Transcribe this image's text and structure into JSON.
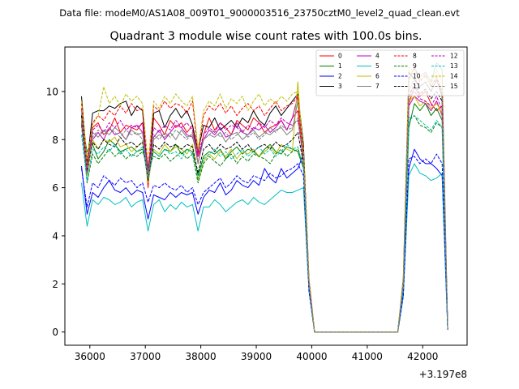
{
  "figure": {
    "suptitle": "Data file: modeM0/AS1A08_009T01_9000003516_23750cztM0_level2_quad_clean.evt",
    "offset_label": "+3.197e8"
  },
  "chart_data": {
    "type": "line",
    "title": "Quadrant 3 module wise count rates with 100.0s bins.",
    "xlabel": "",
    "ylabel": "",
    "x_offset": 319700000,
    "xlim": [
      35550,
      42800
    ],
    "ylim": [
      -0.55,
      11.85
    ],
    "x_ticks": [
      36000,
      37000,
      38000,
      39000,
      40000,
      41000,
      42000
    ],
    "x_tick_labels": [
      "36000",
      "37000",
      "38000",
      "39000",
      "40000",
      "41000",
      "42000"
    ],
    "y_ticks": [
      0,
      2,
      4,
      6,
      8,
      10
    ],
    "y_tick_labels": [
      "0",
      "2",
      "4",
      "6",
      "8",
      "10"
    ],
    "legend_position": "top-right",
    "grid": false,
    "x": [
      35850,
      35950,
      36050,
      36150,
      36250,
      36350,
      36450,
      36550,
      36650,
      36750,
      36850,
      36950,
      37050,
      37150,
      37250,
      37350,
      37450,
      37550,
      37650,
      37750,
      37850,
      37950,
      38050,
      38150,
      38250,
      38350,
      38450,
      38550,
      38650,
      38750,
      38850,
      38950,
      39050,
      39150,
      39250,
      39350,
      39450,
      39550,
      39650,
      39750,
      39850,
      39950,
      40050,
      40150,
      40250,
      40350,
      40450,
      40550,
      40650,
      40750,
      40850,
      40950,
      41050,
      41150,
      41250,
      41350,
      41450,
      41550,
      41650,
      41750,
      41850,
      41950,
      42050,
      42150,
      42250,
      42350,
      42450
    ],
    "series": [
      {
        "name": "0",
        "color": "#ff0000",
        "style": "solid",
        "values": [
          9.3,
          6.8,
          8.5,
          8.7,
          8.2,
          8.4,
          8.9,
          8.3,
          8.6,
          8.5,
          8.4,
          8.7,
          6.0,
          8.9,
          8.6,
          8.2,
          8.8,
          8.5,
          8.7,
          8.3,
          8.6,
          7.0,
          8.2,
          8.9,
          8.4,
          8.7,
          8.5,
          8.2,
          8.8,
          8.6,
          8.4,
          8.9,
          8.7,
          8.3,
          8.5,
          8.6,
          8.8,
          8.4,
          8.9,
          9.2,
          7.0,
          2.0,
          0.0,
          0.0,
          0.0,
          0.0,
          0.0,
          0.0,
          0.0,
          0.0,
          0.0,
          0.0,
          0.0,
          0.0,
          0.0,
          0.0,
          0.0,
          0.0,
          2.0,
          9.5,
          10.2,
          9.8,
          10.0,
          9.5,
          9.2,
          9.4,
          0.1
        ]
      },
      {
        "name": "1",
        "color": "#008000",
        "style": "solid",
        "values": [
          8.8,
          7.5,
          7.8,
          7.2,
          7.5,
          8.0,
          7.8,
          7.5,
          7.6,
          7.7,
          7.5,
          7.6,
          6.9,
          7.5,
          7.3,
          7.6,
          7.5,
          7.8,
          7.4,
          7.6,
          7.5,
          6.5,
          7.3,
          7.5,
          7.4,
          7.6,
          7.2,
          7.5,
          7.7,
          7.4,
          7.6,
          7.5,
          7.3,
          7.6,
          7.8,
          7.5,
          7.4,
          7.7,
          7.6,
          7.5,
          6.8,
          2.0,
          0.0,
          0.0,
          0.0,
          0.0,
          0.0,
          0.0,
          0.0,
          0.0,
          0.0,
          0.0,
          0.0,
          0.0,
          0.0,
          0.0,
          0.0,
          0.0,
          1.8,
          8.5,
          9.5,
          9.2,
          9.5,
          9.0,
          9.3,
          8.8,
          0.1
        ]
      },
      {
        "name": "2",
        "color": "#0000ff",
        "style": "solid",
        "values": [
          6.9,
          4.9,
          5.8,
          5.6,
          6.0,
          6.3,
          5.9,
          5.8,
          6.0,
          5.7,
          5.9,
          5.8,
          4.7,
          5.7,
          5.6,
          5.5,
          5.8,
          5.6,
          5.8,
          5.7,
          5.8,
          4.9,
          5.6,
          5.9,
          5.8,
          6.2,
          5.7,
          5.9,
          6.3,
          6.1,
          6.0,
          6.3,
          6.1,
          6.8,
          6.4,
          6.2,
          6.8,
          6.4,
          6.6,
          6.8,
          7.4,
          1.8,
          0.0,
          0.0,
          0.0,
          0.0,
          0.0,
          0.0,
          0.0,
          0.0,
          0.0,
          0.0,
          0.0,
          0.0,
          0.0,
          0.0,
          0.0,
          0.0,
          1.5,
          6.8,
          7.6,
          7.2,
          7.0,
          7.0,
          6.8,
          6.5,
          0.1
        ]
      },
      {
        "name": "3",
        "color": "#000000",
        "style": "solid",
        "values": [
          9.8,
          7.0,
          9.1,
          9.2,
          9.2,
          9.4,
          9.3,
          9.5,
          9.6,
          9.0,
          9.4,
          9.2,
          6.2,
          9.1,
          9.2,
          8.5,
          9.0,
          9.3,
          8.9,
          9.2,
          8.6,
          7.5,
          8.6,
          8.5,
          8.9,
          8.4,
          8.6,
          8.8,
          8.5,
          8.9,
          8.7,
          9.2,
          8.8,
          8.6,
          9.1,
          9.4,
          9.0,
          9.3,
          9.6,
          9.9,
          7.8,
          2.2,
          0.0,
          0.0,
          0.0,
          0.0,
          0.0,
          0.0,
          0.0,
          0.0,
          0.0,
          0.0,
          0.0,
          0.0,
          0.0,
          0.0,
          0.0,
          0.0,
          2.2,
          10.8,
          10.5,
          10.2,
          10.4,
          10.0,
          10.5,
          9.8,
          0.1
        ]
      },
      {
        "name": "4",
        "color": "#c000c0",
        "style": "solid",
        "values": [
          9.0,
          7.2,
          8.0,
          8.3,
          8.0,
          8.5,
          8.2,
          8.3,
          8.0,
          8.5,
          8.6,
          8.3,
          6.6,
          8.1,
          8.4,
          8.0,
          8.3,
          8.6,
          8.5,
          8.2,
          8.1,
          7.3,
          8.0,
          8.4,
          8.2,
          8.5,
          8.1,
          8.2,
          8.7,
          8.3,
          8.2,
          8.5,
          8.4,
          8.6,
          8.3,
          8.5,
          8.8,
          8.4,
          8.9,
          9.8,
          7.3,
          2.1,
          0.0,
          0.0,
          0.0,
          0.0,
          0.0,
          0.0,
          0.0,
          0.0,
          0.0,
          0.0,
          0.0,
          0.0,
          0.0,
          0.0,
          0.0,
          0.0,
          1.9,
          9.4,
          9.8,
          9.6,
          9.5,
          9.2,
          9.6,
          9.0,
          0.1
        ]
      },
      {
        "name": "5",
        "color": "#00bfbf",
        "style": "solid",
        "values": [
          6.2,
          4.4,
          5.5,
          5.3,
          5.6,
          5.5,
          5.3,
          5.4,
          5.6,
          5.2,
          5.4,
          5.5,
          4.2,
          5.3,
          5.5,
          5.0,
          5.3,
          5.1,
          5.4,
          5.2,
          5.3,
          4.2,
          5.2,
          5.2,
          5.5,
          5.3,
          5.0,
          5.2,
          5.4,
          5.5,
          5.3,
          5.6,
          5.4,
          5.3,
          5.5,
          5.7,
          5.9,
          5.8,
          5.8,
          5.9,
          6.0,
          1.7,
          0.0,
          0.0,
          0.0,
          0.0,
          0.0,
          0.0,
          0.0,
          0.0,
          0.0,
          0.0,
          0.0,
          0.0,
          0.0,
          0.0,
          0.0,
          0.0,
          1.5,
          6.5,
          7.0,
          6.6,
          6.5,
          6.3,
          6.4,
          6.6,
          0.1
        ]
      },
      {
        "name": "6",
        "color": "#bfbf00",
        "style": "solid",
        "values": [
          8.8,
          6.5,
          8.0,
          7.6,
          8.0,
          7.9,
          8.1,
          7.7,
          7.8,
          7.5,
          7.7,
          7.9,
          6.2,
          7.6,
          7.4,
          7.8,
          7.5,
          7.7,
          7.6,
          7.4,
          7.8,
          6.3,
          7.1,
          7.4,
          7.2,
          7.5,
          7.3,
          7.6,
          7.2,
          7.5,
          7.4,
          7.6,
          7.3,
          7.5,
          7.7,
          7.4,
          7.8,
          7.6,
          7.5,
          10.4,
          7.0,
          2.0,
          0.0,
          0.0,
          0.0,
          0.0,
          0.0,
          0.0,
          0.0,
          0.0,
          0.0,
          0.0,
          0.0,
          0.0,
          0.0,
          0.0,
          0.0,
          0.0,
          2.0,
          9.6,
          9.8,
          9.4,
          9.6,
          9.3,
          9.5,
          9.1,
          0.1
        ]
      },
      {
        "name": "7",
        "color": "#808080",
        "style": "solid",
        "values": [
          9.1,
          6.9,
          8.3,
          8.1,
          8.4,
          8.2,
          8.5,
          8.3,
          8.0,
          8.4,
          8.2,
          8.3,
          6.4,
          8.0,
          8.2,
          8.1,
          8.3,
          8.0,
          8.4,
          8.1,
          8.2,
          7.0,
          8.0,
          8.2,
          8.1,
          8.3,
          7.9,
          8.2,
          8.3,
          8.0,
          8.2,
          8.4,
          8.1,
          8.3,
          8.2,
          8.4,
          8.5,
          8.2,
          8.4,
          9.6,
          7.2,
          2.0,
          0.0,
          0.0,
          0.0,
          0.0,
          0.0,
          0.0,
          0.0,
          0.0,
          0.0,
          0.0,
          0.0,
          0.0,
          0.0,
          0.0,
          0.0,
          0.0,
          2.0,
          10.5,
          11.0,
          10.6,
          10.8,
          10.4,
          11.2,
          10.9,
          0.1
        ]
      },
      {
        "name": "8",
        "color": "#ff0000",
        "style": "dashed",
        "values": [
          9.5,
          6.9,
          8.7,
          9.0,
          8.8,
          9.2,
          9.0,
          9.4,
          9.1,
          9.5,
          9.2,
          9.3,
          6.7,
          9.4,
          9.2,
          9.6,
          9.3,
          9.5,
          9.4,
          9.1,
          9.6,
          7.4,
          9.0,
          9.4,
          9.2,
          9.5,
          9.1,
          9.4,
          9.0,
          9.3,
          9.5,
          9.2,
          9.4,
          9.0,
          9.3,
          9.6,
          9.2,
          9.4,
          9.5,
          9.8,
          7.2,
          2.2,
          0.0,
          0.0,
          0.0,
          0.0,
          0.0,
          0.0,
          0.0,
          0.0,
          0.0,
          0.0,
          0.0,
          0.0,
          0.0,
          0.0,
          0.0,
          0.0,
          2.1,
          10.5,
          11.0,
          10.4,
          10.7,
          10.2,
          10.6,
          10.0,
          0.1
        ]
      },
      {
        "name": "9",
        "color": "#008000",
        "style": "dashed",
        "values": [
          8.6,
          6.2,
          7.4,
          7.0,
          7.3,
          7.6,
          7.3,
          7.5,
          7.2,
          7.4,
          7.3,
          7.5,
          6.8,
          7.3,
          7.2,
          7.4,
          7.1,
          7.3,
          7.5,
          7.2,
          7.4,
          6.2,
          7.0,
          7.3,
          7.1,
          6.9,
          7.2,
          7.4,
          7.0,
          7.3,
          7.1,
          7.4,
          7.3,
          7.2,
          7.0,
          7.4,
          7.6,
          7.3,
          7.5,
          7.6,
          6.9,
          1.9,
          0.0,
          0.0,
          0.0,
          0.0,
          0.0,
          0.0,
          0.0,
          0.0,
          0.0,
          0.0,
          0.0,
          0.0,
          0.0,
          0.0,
          0.0,
          0.0,
          1.8,
          8.8,
          9.0,
          8.6,
          8.5,
          8.3,
          8.7,
          8.5,
          0.1
        ]
      },
      {
        "name": "10",
        "color": "#0000ff",
        "style": "dashed",
        "values": [
          6.8,
          5.2,
          6.2,
          6.0,
          6.5,
          6.3,
          6.1,
          6.4,
          6.2,
          6.3,
          6.0,
          6.2,
          5.4,
          6.1,
          6.0,
          6.2,
          6.0,
          5.9,
          6.1,
          5.8,
          6.0,
          5.3,
          5.8,
          6.0,
          6.2,
          6.4,
          6.0,
          6.2,
          6.5,
          6.3,
          6.2,
          6.5,
          6.4,
          6.3,
          6.6,
          6.4,
          6.5,
          6.7,
          6.8,
          7.0,
          6.5,
          1.7,
          0.0,
          0.0,
          0.0,
          0.0,
          0.0,
          0.0,
          0.0,
          0.0,
          0.0,
          0.0,
          0.0,
          0.0,
          0.0,
          0.0,
          0.0,
          0.0,
          1.5,
          7.2,
          7.3,
          7.0,
          7.2,
          7.0,
          7.4,
          7.0,
          0.1
        ]
      },
      {
        "name": "11",
        "color": "#000000",
        "style": "dashed",
        "values": [
          9.0,
          6.7,
          7.9,
          7.6,
          8.0,
          7.8,
          7.7,
          8.1,
          7.8,
          7.9,
          7.7,
          7.9,
          6.3,
          7.8,
          7.6,
          7.9,
          7.7,
          7.8,
          7.6,
          7.8,
          7.7,
          6.6,
          7.6,
          7.8,
          7.5,
          7.8,
          7.6,
          7.7,
          7.9,
          7.6,
          7.8,
          7.5,
          7.7,
          7.8,
          7.6,
          7.9,
          7.7,
          7.8,
          8.0,
          8.3,
          7.0,
          2.0,
          0.0,
          0.0,
          0.0,
          0.0,
          0.0,
          0.0,
          0.0,
          0.0,
          0.0,
          0.0,
          0.0,
          0.0,
          0.0,
          0.0,
          0.0,
          0.0,
          2.0,
          9.8,
          10.3,
          9.9,
          10.1,
          9.7,
          10.0,
          9.6,
          0.1
        ]
      },
      {
        "name": "12",
        "color": "#c000c0",
        "style": "dashed",
        "values": [
          8.7,
          6.6,
          8.4,
          8.6,
          8.3,
          8.7,
          8.5,
          8.8,
          8.4,
          8.6,
          8.5,
          8.7,
          6.8,
          8.5,
          8.3,
          8.6,
          8.4,
          8.8,
          8.5,
          8.7,
          8.4,
          7.3,
          8.2,
          8.5,
          8.3,
          8.7,
          8.4,
          8.6,
          8.5,
          8.3,
          8.6,
          8.4,
          8.7,
          8.5,
          8.8,
          8.6,
          8.9,
          8.7,
          8.6,
          8.8,
          7.2,
          2.1,
          0.0,
          0.0,
          0.0,
          0.0,
          0.0,
          0.0,
          0.0,
          0.0,
          0.0,
          0.0,
          0.0,
          0.0,
          0.0,
          0.0,
          0.0,
          0.0,
          2.0,
          9.8,
          10.0,
          9.7,
          9.6,
          9.4,
          9.8,
          9.2,
          0.1
        ]
      },
      {
        "name": "13",
        "color": "#00bfbf",
        "style": "dashed",
        "values": [
          8.2,
          6.3,
          7.6,
          7.4,
          7.7,
          7.5,
          7.8,
          7.4,
          7.6,
          7.3,
          7.5,
          7.7,
          6.4,
          7.5,
          7.3,
          7.6,
          7.4,
          7.5,
          7.2,
          7.6,
          7.4,
          6.4,
          7.2,
          7.4,
          7.6,
          7.3,
          7.5,
          7.2,
          7.4,
          7.6,
          7.3,
          7.5,
          7.7,
          7.4,
          7.6,
          7.3,
          7.5,
          7.8,
          7.6,
          7.7,
          6.8,
          1.9,
          0.0,
          0.0,
          0.0,
          0.0,
          0.0,
          0.0,
          0.0,
          0.0,
          0.0,
          0.0,
          0.0,
          0.0,
          0.0,
          0.0,
          0.0,
          0.0,
          1.8,
          8.9,
          9.0,
          8.8,
          8.6,
          8.4,
          8.8,
          8.5,
          0.1
        ]
      },
      {
        "name": "14",
        "color": "#bfbf00",
        "style": "dashed",
        "values": [
          9.6,
          7.2,
          8.6,
          9.0,
          10.2,
          9.5,
          9.8,
          9.4,
          9.9,
          9.6,
          9.8,
          9.5,
          7.0,
          9.6,
          9.3,
          9.8,
          9.5,
          9.9,
          9.6,
          9.4,
          9.8,
          7.6,
          9.2,
          9.6,
          9.4,
          9.9,
          9.3,
          9.7,
          9.5,
          9.8,
          9.2,
          9.6,
          9.9,
          9.4,
          9.7,
          9.5,
          9.8,
          9.6,
          9.9,
          10.0,
          7.6,
          2.3,
          0.0,
          0.0,
          0.0,
          0.0,
          0.0,
          0.0,
          0.0,
          0.0,
          0.0,
          0.0,
          0.0,
          0.0,
          0.0,
          0.0,
          0.0,
          0.0,
          2.3,
          11.0,
          10.8,
          10.5,
          10.6,
          10.3,
          10.9,
          10.4,
          0.1
        ]
      },
      {
        "name": "15",
        "color": "#808080",
        "style": "dashed",
        "values": [
          8.9,
          6.8,
          8.1,
          8.4,
          8.2,
          8.5,
          8.3,
          8.1,
          8.4,
          8.2,
          8.3,
          8.0,
          6.5,
          8.2,
          8.0,
          8.3,
          8.1,
          8.4,
          8.2,
          8.0,
          8.3,
          7.0,
          8.0,
          8.2,
          8.4,
          8.1,
          8.3,
          8.0,
          8.2,
          8.4,
          8.1,
          8.3,
          8.0,
          8.2,
          8.5,
          8.3,
          8.6,
          8.4,
          8.5,
          8.9,
          7.1,
          2.0,
          0.0,
          0.0,
          0.0,
          0.0,
          0.0,
          0.0,
          0.0,
          0.0,
          0.0,
          0.0,
          0.0,
          0.0,
          0.0,
          0.0,
          0.0,
          0.0,
          2.0,
          10.0,
          10.6,
          10.2,
          10.4,
          10.0,
          10.5,
          9.9,
          0.1
        ]
      }
    ]
  }
}
